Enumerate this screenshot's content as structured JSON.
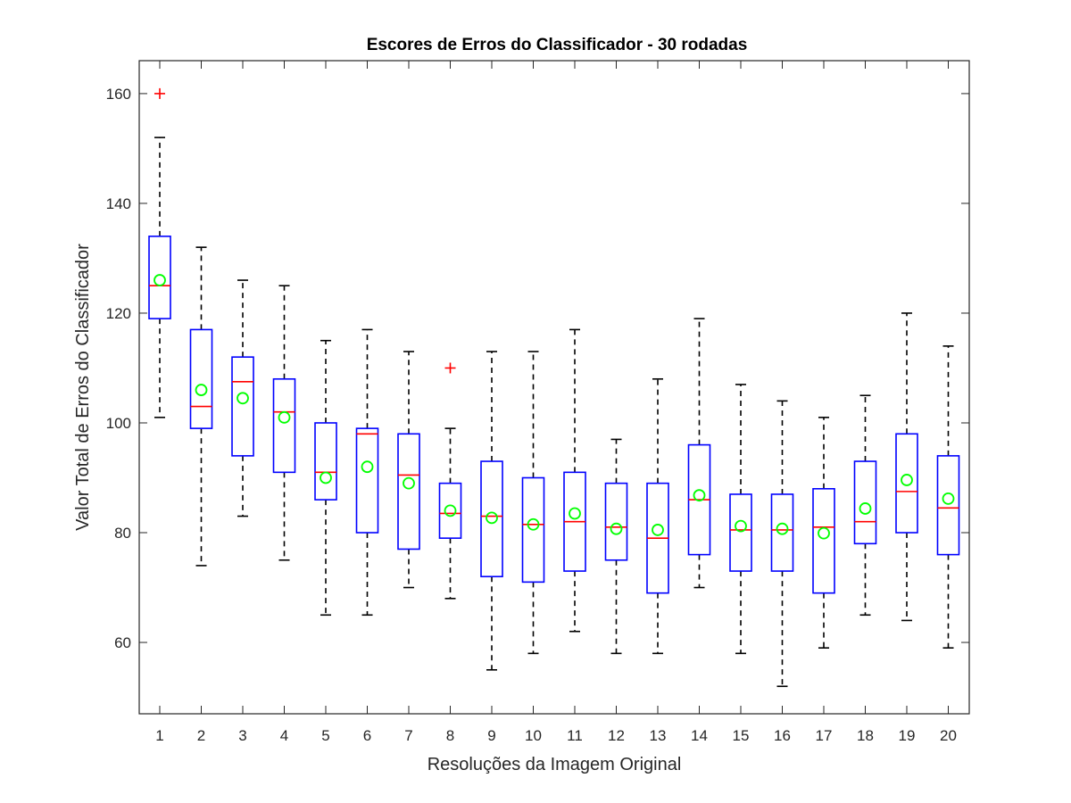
{
  "chart_data": {
    "type": "boxplot",
    "title": "Escores de Erros do Classificador - 30 rodadas",
    "xlabel": "Resoluções da Imagem Original",
    "ylabel": "Valor Total de Erros do Classificador",
    "categories": [
      "1",
      "2",
      "3",
      "4",
      "5",
      "6",
      "7",
      "8",
      "9",
      "10",
      "11",
      "12",
      "13",
      "14",
      "15",
      "16",
      "17",
      "18",
      "19",
      "20"
    ],
    "ylim": [
      47,
      166
    ],
    "yticks": [
      60,
      80,
      100,
      120,
      140,
      160
    ],
    "boxes": [
      {
        "category": "1",
        "whisker_low": 101,
        "q1": 119,
        "median": 125,
        "q3": 134,
        "whisker_high": 152,
        "mean": 126,
        "outliers": [
          160
        ]
      },
      {
        "category": "2",
        "whisker_low": 74,
        "q1": 99,
        "median": 103,
        "q3": 117,
        "whisker_high": 132,
        "mean": 106,
        "outliers": []
      },
      {
        "category": "3",
        "whisker_low": 83,
        "q1": 94,
        "median": 107.5,
        "q3": 112,
        "whisker_high": 126,
        "mean": 104.5,
        "outliers": []
      },
      {
        "category": "4",
        "whisker_low": 75,
        "q1": 91,
        "median": 102,
        "q3": 108,
        "whisker_high": 125,
        "mean": 101,
        "outliers": []
      },
      {
        "category": "5",
        "whisker_low": 65,
        "q1": 86,
        "median": 91,
        "q3": 100,
        "whisker_high": 115,
        "mean": 90,
        "outliers": []
      },
      {
        "category": "6",
        "whisker_low": 65,
        "q1": 80,
        "median": 98,
        "q3": 99,
        "whisker_high": 117,
        "mean": 92,
        "outliers": []
      },
      {
        "category": "7",
        "whisker_low": 70,
        "q1": 77,
        "median": 90.5,
        "q3": 98,
        "whisker_high": 113,
        "mean": 89,
        "outliers": []
      },
      {
        "category": "8",
        "whisker_low": 68,
        "q1": 79,
        "median": 83.5,
        "q3": 89,
        "whisker_high": 99,
        "mean": 84,
        "outliers": [
          110
        ]
      },
      {
        "category": "9",
        "whisker_low": 55,
        "q1": 72,
        "median": 83,
        "q3": 93,
        "whisker_high": 113,
        "mean": 82.7,
        "outliers": []
      },
      {
        "category": "10",
        "whisker_low": 58,
        "q1": 71,
        "median": 81.5,
        "q3": 90,
        "whisker_high": 113,
        "mean": 81.5,
        "outliers": []
      },
      {
        "category": "11",
        "whisker_low": 62,
        "q1": 73,
        "median": 82,
        "q3": 91,
        "whisker_high": 117,
        "mean": 83.5,
        "outliers": []
      },
      {
        "category": "12",
        "whisker_low": 58,
        "q1": 75,
        "median": 81,
        "q3": 89,
        "whisker_high": 97,
        "mean": 80.7,
        "outliers": []
      },
      {
        "category": "13",
        "whisker_low": 58,
        "q1": 69,
        "median": 79,
        "q3": 89,
        "whisker_high": 108,
        "mean": 80.5,
        "outliers": []
      },
      {
        "category": "14",
        "whisker_low": 70,
        "q1": 76,
        "median": 86,
        "q3": 96,
        "whisker_high": 119,
        "mean": 86.8,
        "outliers": []
      },
      {
        "category": "15",
        "whisker_low": 58,
        "q1": 73,
        "median": 80.5,
        "q3": 87,
        "whisker_high": 107,
        "mean": 81.2,
        "outliers": []
      },
      {
        "category": "16",
        "whisker_low": 52,
        "q1": 73,
        "median": 80.5,
        "q3": 87,
        "whisker_high": 104,
        "mean": 80.7,
        "outliers": []
      },
      {
        "category": "17",
        "whisker_low": 59,
        "q1": 69,
        "median": 81,
        "q3": 88,
        "whisker_high": 101,
        "mean": 79.9,
        "outliers": []
      },
      {
        "category": "18",
        "whisker_low": 65,
        "q1": 78,
        "median": 82,
        "q3": 93,
        "whisker_high": 105,
        "mean": 84.4,
        "outliers": []
      },
      {
        "category": "19",
        "whisker_low": 64,
        "q1": 80,
        "median": 87.5,
        "q3": 98,
        "whisker_high": 120,
        "mean": 89.6,
        "outliers": []
      },
      {
        "category": "20",
        "whisker_low": 59,
        "q1": 76,
        "median": 84.5,
        "q3": 94,
        "whisker_high": 114,
        "mean": 86.2,
        "outliers": []
      }
    ],
    "colors": {
      "box": "#0000ff",
      "median": "#ff0000",
      "whisker": "#000000",
      "mean_marker": "#00ff00",
      "outlier": "#ff0000",
      "axes": "#262626"
    },
    "grid": false,
    "legend": "none"
  }
}
